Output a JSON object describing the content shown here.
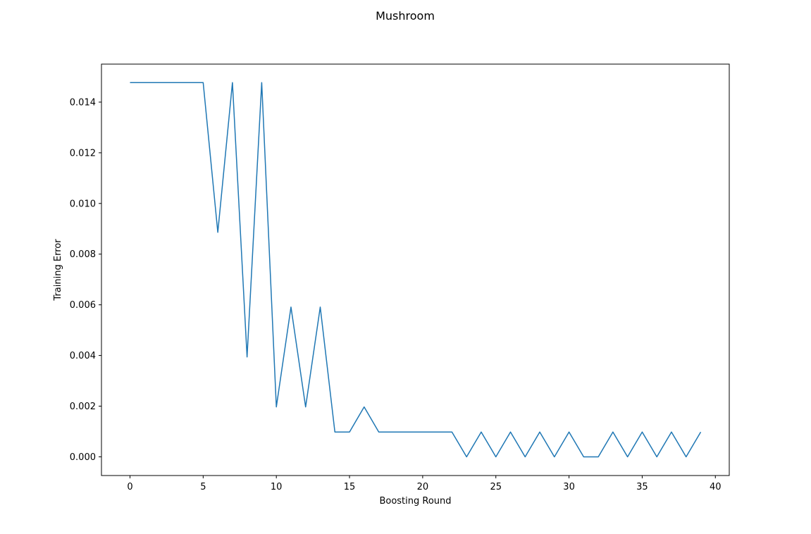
{
  "chart_data": {
    "type": "line",
    "title": "Mushroom",
    "xlabel": "Boosting Round",
    "ylabel": "Training Error",
    "xlim": [
      -1.95,
      40.95
    ],
    "ylim": [
      -0.000738,
      0.0155
    ],
    "x_ticks": [
      0,
      5,
      10,
      15,
      20,
      25,
      30,
      35,
      40
    ],
    "x_tick_labels": [
      "0",
      "5",
      "10",
      "15",
      "20",
      "25",
      "30",
      "35",
      "40"
    ],
    "y_ticks": [
      0.0,
      0.002,
      0.004,
      0.006,
      0.008,
      0.01,
      0.012,
      0.014
    ],
    "y_tick_labels": [
      "0.000",
      "0.002",
      "0.004",
      "0.006",
      "0.008",
      "0.010",
      "0.012",
      "0.014"
    ],
    "grid": false,
    "legend": "none",
    "series": [
      {
        "color": "#1f77b4",
        "x": [
          0,
          1,
          2,
          3,
          4,
          5,
          6,
          7,
          8,
          9,
          10,
          11,
          12,
          13,
          14,
          15,
          16,
          17,
          18,
          19,
          20,
          21,
          22,
          23,
          24,
          25,
          26,
          27,
          28,
          29,
          30,
          31,
          32,
          33,
          34,
          35,
          36,
          37,
          38,
          39
        ],
        "values": [
          0.01477,
          0.01477,
          0.01477,
          0.01477,
          0.01477,
          0.01477,
          0.00886,
          0.01477,
          0.00394,
          0.01477,
          0.00197,
          0.00591,
          0.00197,
          0.00591,
          0.00098,
          0.00098,
          0.00197,
          0.00098,
          0.00098,
          0.00098,
          0.00098,
          0.00098,
          0.00098,
          0.0,
          0.00098,
          0.0,
          0.00098,
          0.0,
          0.00098,
          0.0,
          0.00098,
          0.0,
          0.0,
          0.00098,
          0.0,
          0.00098,
          0.0,
          0.00098,
          0.0,
          0.00098
        ]
      }
    ]
  }
}
